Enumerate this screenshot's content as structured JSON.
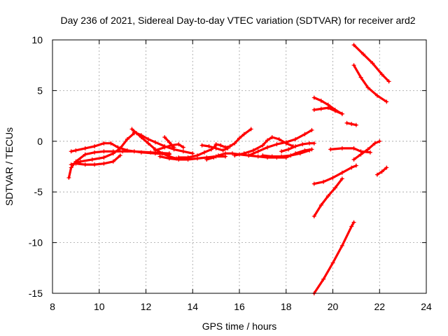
{
  "chart_data": {
    "type": "scatter",
    "title": "Day 236 of 2021, Sidereal Day-to-day VTEC variation (SDTVAR) for receiver ard2",
    "xlabel": "GPS time / hours",
    "ylabel": "SDTVAR / TECUs",
    "xlim": [
      8,
      24
    ],
    "ylim": [
      -15,
      10
    ],
    "xticks": [
      "8",
      "10",
      "12",
      "14",
      "16",
      "18",
      "20",
      "22",
      "24"
    ],
    "yticks": [
      "10",
      "5",
      "0",
      "-5",
      "-10",
      "-15"
    ],
    "grid": true,
    "marker": "plus",
    "color": "#ff0000",
    "series": [
      {
        "x": [
          8.7,
          8.8,
          9.0,
          9.4,
          9.8,
          10.2,
          10.6,
          11.0,
          11.5,
          12.2,
          13.0
        ],
        "y": [
          -3.6,
          -2.6,
          -2.0,
          -1.3,
          -1.1,
          -1.0,
          -1.0,
          -1.0,
          -1.0,
          -1.1,
          -1.2
        ]
      },
      {
        "x": [
          8.8,
          9.0,
          9.4,
          9.8,
          10.2,
          10.5,
          10.8,
          11.2,
          11.8,
          12.4,
          13.0
        ],
        "y": [
          -1.0,
          -0.9,
          -0.7,
          -0.5,
          -0.2,
          -0.2,
          -0.6,
          -0.9,
          -1.1,
          -1.2,
          -1.3
        ]
      },
      {
        "x": [
          8.8,
          9.2,
          9.7,
          10.2,
          10.6,
          10.9,
          11.2,
          11.5
        ],
        "y": [
          -2.3,
          -2.0,
          -1.8,
          -1.6,
          -1.2,
          -0.7,
          0.2,
          0.8
        ]
      },
      {
        "x": [
          9.0,
          9.4,
          9.8,
          10.2,
          10.6,
          10.9
        ],
        "y": [
          -2.2,
          -2.3,
          -2.3,
          -2.2,
          -2.0,
          -1.4
        ]
      },
      {
        "x": [
          11.4,
          11.6,
          11.8,
          12.1,
          12.4,
          12.7,
          13.0,
          13.3
        ],
        "y": [
          1.2,
          0.8,
          0.4,
          -0.2,
          -0.8,
          -1.2,
          -1.5,
          -1.7
        ]
      },
      {
        "x": [
          11.5,
          11.8,
          12.1,
          12.4,
          12.8,
          13.2,
          13.6,
          14.0
        ],
        "y": [
          0.9,
          0.6,
          0.2,
          -0.1,
          -0.5,
          -0.8,
          -1.0,
          -1.2
        ]
      },
      {
        "x": [
          12.6,
          13.0,
          13.4,
          13.8,
          14.2,
          14.6,
          15.0,
          15.4
        ],
        "y": [
          -1.5,
          -1.7,
          -1.8,
          -1.8,
          -1.7,
          -1.6,
          -1.5,
          -1.5
        ]
      },
      {
        "x": [
          12.4,
          12.8,
          13.1,
          13.4,
          13.6
        ],
        "y": [
          -0.9,
          -0.6,
          -0.4,
          -0.3,
          -0.6
        ]
      },
      {
        "x": [
          12.8,
          13.0,
          13.2
        ],
        "y": [
          0.4,
          -0.1,
          -0.6
        ]
      },
      {
        "x": [
          13.4,
          13.8,
          14.2,
          14.5,
          14.8,
          15.0
        ],
        "y": [
          -1.6,
          -1.6,
          -1.4,
          -1.1,
          -0.8,
          -0.4
        ]
      },
      {
        "x": [
          14.6,
          14.9,
          15.1,
          15.4,
          15.7,
          16.0,
          16.4,
          16.8,
          17.2,
          17.6,
          18.0,
          18.4,
          18.8,
          19.1
        ],
        "y": [
          -1.8,
          -1.6,
          -1.4,
          -1.2,
          -1.2,
          -1.3,
          -1.4,
          -1.5,
          -1.6,
          -1.6,
          -1.6,
          -1.2,
          -0.9,
          -0.8
        ]
      },
      {
        "x": [
          15.0,
          15.2,
          15.4,
          15.6,
          15.8,
          16.0,
          16.2,
          16.5
        ],
        "y": [
          -0.3,
          -0.4,
          -0.6,
          -0.5,
          -0.2,
          0.3,
          0.7,
          1.2
        ]
      },
      {
        "x": [
          14.4,
          14.7,
          15.0,
          15.3,
          15.5
        ],
        "y": [
          -0.4,
          -0.5,
          -0.7,
          -0.9,
          -0.7
        ]
      },
      {
        "x": [
          15.8,
          16.2,
          16.6,
          17.0,
          17.2,
          17.4,
          17.7,
          18.0,
          18.3
        ],
        "y": [
          -1.4,
          -1.2,
          -0.9,
          -0.4,
          0.1,
          0.4,
          0.2,
          -0.2,
          -0.5
        ]
      },
      {
        "x": [
          16.4,
          16.8,
          17.2,
          17.6,
          18.0,
          18.4,
          18.8,
          19.1
        ],
        "y": [
          -1.4,
          -1.0,
          -0.6,
          -0.3,
          -0.1,
          0.2,
          0.7,
          1.1
        ]
      },
      {
        "x": [
          17.8,
          18.1,
          18.4,
          18.7,
          19.0,
          19.2
        ],
        "y": [
          -1.0,
          -0.8,
          -0.5,
          -0.3,
          -0.2,
          -0.2
        ]
      },
      {
        "x": [
          17.0,
          17.4,
          17.8,
          18.2,
          18.6,
          19.0
        ],
        "y": [
          -1.4,
          -1.5,
          -1.5,
          -1.4,
          -1.2,
          -0.9
        ]
      },
      {
        "x": [
          19.2,
          19.5,
          19.8,
          20.1,
          20.4
        ],
        "y": [
          4.3,
          4.0,
          3.6,
          3.1,
          2.7
        ]
      },
      {
        "x": [
          19.2,
          19.5,
          19.8,
          20.1,
          20.4
        ],
        "y": [
          3.1,
          3.2,
          3.3,
          3.0,
          2.7
        ]
      },
      {
        "x": [
          20.6,
          20.8,
          21.0
        ],
        "y": [
          1.8,
          1.7,
          1.6
        ]
      },
      {
        "x": [
          19.2,
          19.6,
          20.0,
          20.4,
          20.8,
          21.0
        ],
        "y": [
          -4.2,
          -4.0,
          -3.6,
          -3.1,
          -2.6,
          -2.4
        ]
      },
      {
        "x": [
          19.2,
          19.5,
          19.8,
          20.1,
          20.4
        ],
        "y": [
          -7.4,
          -6.3,
          -5.4,
          -4.6,
          -3.7
        ]
      },
      {
        "x": [
          19.2,
          19.6,
          20.0,
          20.4,
          20.8,
          20.9
        ],
        "y": [
          -15.0,
          -13.6,
          -12.0,
          -10.3,
          -8.4,
          -8.0
        ]
      },
      {
        "x": [
          19.9,
          20.4,
          20.9,
          21.2,
          21.6
        ],
        "y": [
          -0.8,
          -0.7,
          -0.7,
          -1.0,
          -1.1
        ]
      },
      {
        "x": [
          20.9,
          21.2,
          21.5,
          21.8,
          22.0
        ],
        "y": [
          -1.8,
          -1.3,
          -0.8,
          -0.2,
          0.0
        ]
      },
      {
        "x": [
          20.9,
          21.3,
          21.7,
          22.1,
          22.4
        ],
        "y": [
          9.5,
          8.6,
          7.7,
          6.6,
          5.9
        ]
      },
      {
        "x": [
          20.9,
          21.2,
          21.5,
          21.9,
          22.3
        ],
        "y": [
          7.5,
          6.3,
          5.3,
          4.5,
          3.9
        ]
      },
      {
        "x": [
          21.9,
          22.1,
          22.3
        ],
        "y": [
          -3.3,
          -3.0,
          -2.6
        ]
      }
    ]
  }
}
